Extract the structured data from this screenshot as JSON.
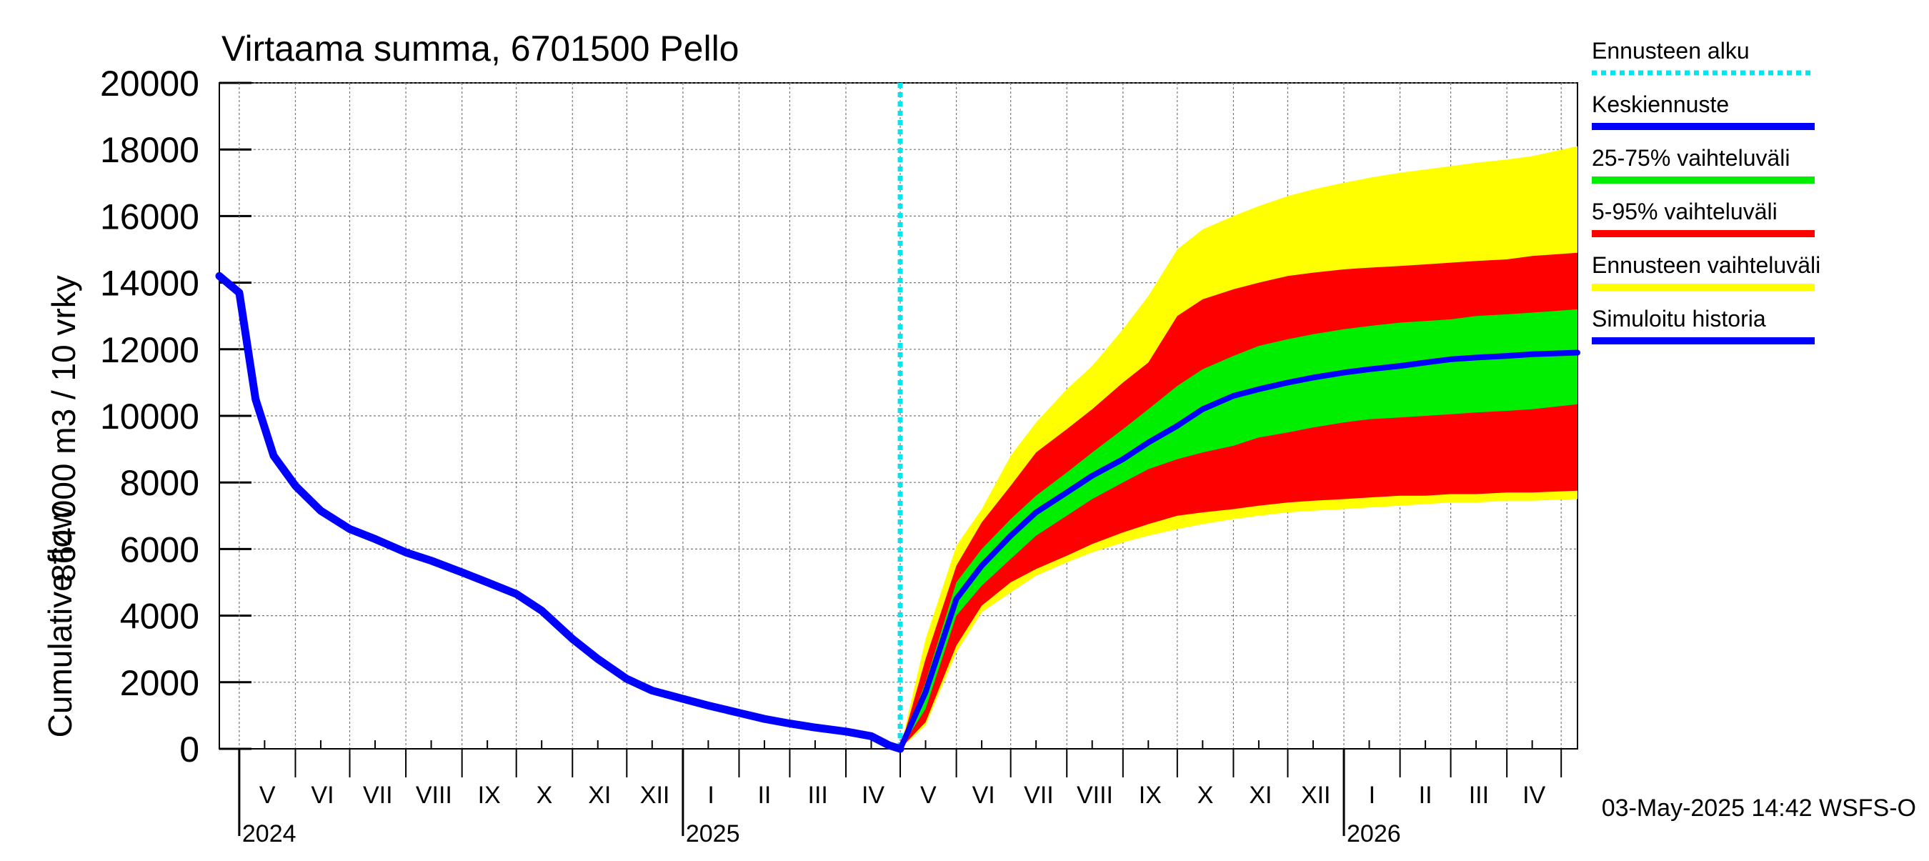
{
  "chart_data": {
    "type": "area",
    "title": "Virtaama summa, 6701500 Pello",
    "ylabel_primary": "864 000 m3 / 10 vrky",
    "ylabel_secondary": "Cumulative flow",
    "ylim": [
      0,
      20000
    ],
    "yticks": [
      0,
      2000,
      4000,
      6000,
      8000,
      10000,
      12000,
      14000,
      16000,
      18000,
      20000
    ],
    "grid": true,
    "x_unit": "month-day",
    "x_range": [
      "2024-04-20",
      "2026-05-10"
    ],
    "month_labels": [
      {
        "label": "V",
        "date": "2024-05-01"
      },
      {
        "label": "VI",
        "date": "2024-06-01"
      },
      {
        "label": "VII",
        "date": "2024-07-01"
      },
      {
        "label": "VIII",
        "date": "2024-08-01"
      },
      {
        "label": "IX",
        "date": "2024-09-01"
      },
      {
        "label": "X",
        "date": "2024-10-01"
      },
      {
        "label": "XI",
        "date": "2024-11-01"
      },
      {
        "label": "XII",
        "date": "2024-12-01"
      },
      {
        "label": "I",
        "date": "2025-01-01"
      },
      {
        "label": "II",
        "date": "2025-02-01"
      },
      {
        "label": "III",
        "date": "2025-03-01"
      },
      {
        "label": "IV",
        "date": "2025-04-01"
      },
      {
        "label": "V",
        "date": "2025-05-01"
      },
      {
        "label": "VI",
        "date": "2025-06-01"
      },
      {
        "label": "VII",
        "date": "2025-07-01"
      },
      {
        "label": "VIII",
        "date": "2025-08-01"
      },
      {
        "label": "IX",
        "date": "2025-09-01"
      },
      {
        "label": "X",
        "date": "2025-10-01"
      },
      {
        "label": "XI",
        "date": "2025-11-01"
      },
      {
        "label": "XII",
        "date": "2025-12-01"
      },
      {
        "label": "I",
        "date": "2026-01-01"
      },
      {
        "label": "II",
        "date": "2026-02-01"
      },
      {
        "label": "III",
        "date": "2026-03-01"
      },
      {
        "label": "IV",
        "date": "2026-04-01"
      }
    ],
    "year_labels": [
      {
        "label": "2024",
        "date": "2024-05-01"
      },
      {
        "label": "2025",
        "date": "2025-01-01"
      },
      {
        "label": "2026",
        "date": "2026-01-01"
      }
    ],
    "forecast_start": "2025-05-01",
    "legend_position": "right",
    "legend": [
      {
        "label": "Ennusteen alku",
        "color": "#00e5ee",
        "style": "dotted"
      },
      {
        "label": "Keskiennuste",
        "color": "#0000ff",
        "style": "solid"
      },
      {
        "label": "25-75% vaihteluväli",
        "color": "#00ee00",
        "style": "solid"
      },
      {
        "label": "5-95% vaihteluväli",
        "color": "#ff0000",
        "style": "solid"
      },
      {
        "label": "Ennusteen vaihteluväli",
        "color": "#ffff00",
        "style": "solid"
      },
      {
        "label": "Simuloitu historia",
        "color": "#0000ff",
        "style": "solid"
      }
    ],
    "colors": {
      "forecast_range": "#ffff00",
      "band_5_95": "#ff0000",
      "band_25_75": "#00ee00",
      "median": "#0000ff",
      "history": "#0000ff",
      "forecast_start_line": "#00e5ee"
    },
    "history": {
      "name": "Simuloitu historia",
      "x": [
        "2024-04-20",
        "2024-05-01",
        "2024-05-10",
        "2024-05-20",
        "2024-06-01",
        "2024-06-15",
        "2024-07-01",
        "2024-07-15",
        "2024-08-01",
        "2024-08-15",
        "2024-09-01",
        "2024-09-15",
        "2024-10-01",
        "2024-10-15",
        "2024-11-01",
        "2024-11-15",
        "2024-12-01",
        "2024-12-15",
        "2025-01-01",
        "2025-01-15",
        "2025-02-01",
        "2025-02-15",
        "2025-03-01",
        "2025-03-15",
        "2025-04-01",
        "2025-04-15",
        "2025-04-25",
        "2025-05-01"
      ],
      "y": [
        14200,
        13700,
        10500,
        8800,
        7900,
        7150,
        6600,
        6300,
        5900,
        5650,
        5300,
        5000,
        4650,
        4150,
        3300,
        2700,
        2100,
        1750,
        1500,
        1300,
        1080,
        900,
        760,
        640,
        520,
        380,
        100,
        0
      ]
    },
    "forecast": {
      "x": [
        "2025-05-01",
        "2025-05-15",
        "2025-06-01",
        "2025-06-15",
        "2025-07-01",
        "2025-07-15",
        "2025-08-01",
        "2025-08-15",
        "2025-09-01",
        "2025-09-15",
        "2025-10-01",
        "2025-10-15",
        "2025-11-01",
        "2025-11-15",
        "2025-12-01",
        "2025-12-15",
        "2026-01-01",
        "2026-01-15",
        "2026-02-01",
        "2026-02-15",
        "2026-03-01",
        "2026-03-15",
        "2026-04-01",
        "2026-04-15",
        "2026-05-10"
      ],
      "min": [
        0,
        700,
        2900,
        4100,
        4700,
        5200,
        5600,
        5900,
        6200,
        6400,
        6600,
        6750,
        6900,
        7000,
        7100,
        7150,
        7200,
        7250,
        7300,
        7350,
        7400,
        7400,
        7450,
        7450,
        7500
      ],
      "p5": [
        0,
        800,
        3100,
        4300,
        5000,
        5400,
        5800,
        6150,
        6500,
        6750,
        7000,
        7100,
        7200,
        7300,
        7400,
        7450,
        7500,
        7550,
        7600,
        7600,
        7650,
        7650,
        7700,
        7700,
        7750
      ],
      "p25": [
        0,
        1200,
        4000,
        4900,
        5700,
        6400,
        7000,
        7500,
        8000,
        8400,
        8700,
        8900,
        9100,
        9350,
        9500,
        9650,
        9800,
        9900,
        9950,
        10000,
        10050,
        10100,
        10150,
        10200,
        10350
      ],
      "median": [
        0,
        1700,
        4500,
        5500,
        6400,
        7100,
        7700,
        8200,
        8700,
        9200,
        9700,
        10200,
        10600,
        10800,
        11000,
        11150,
        11300,
        11400,
        11500,
        11600,
        11700,
        11750,
        11800,
        11850,
        11900
      ],
      "p75": [
        0,
        2000,
        5000,
        6000,
        6900,
        7600,
        8300,
        8900,
        9600,
        10200,
        10900,
        11400,
        11800,
        12100,
        12300,
        12450,
        12600,
        12700,
        12800,
        12850,
        12900,
        13000,
        13050,
        13100,
        13200
      ],
      "p95": [
        0,
        2700,
        5500,
        6800,
        7900,
        8900,
        9600,
        10200,
        11000,
        11600,
        13000,
        13500,
        13800,
        14000,
        14200,
        14300,
        14400,
        14450,
        14500,
        14550,
        14600,
        14650,
        14700,
        14800,
        14900
      ],
      "max": [
        0,
        3300,
        6100,
        7200,
        8800,
        9800,
        10800,
        11500,
        12600,
        13600,
        15000,
        15600,
        16000,
        16300,
        16600,
        16800,
        17000,
        17150,
        17300,
        17400,
        17500,
        17600,
        17700,
        17800,
        18100
      ]
    },
    "footer": "03-May-2025 14:42 WSFS-O"
  }
}
